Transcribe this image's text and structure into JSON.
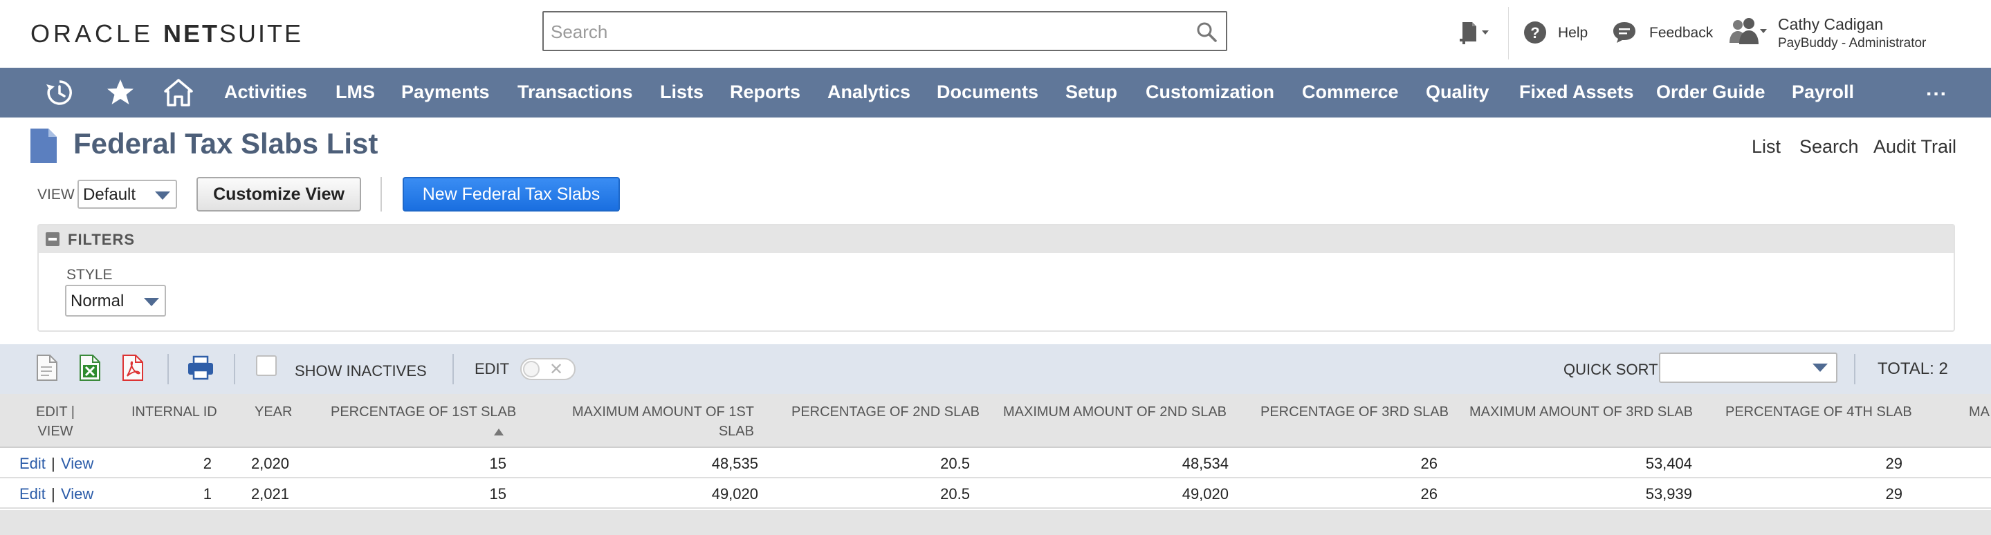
{
  "header": {
    "logo_oracle": "ORACLE",
    "logo_net": "NET",
    "logo_suite": "SUITE",
    "search_placeholder": "Search",
    "help": "Help",
    "feedback": "Feedback",
    "user_name": "Cathy Cadigan",
    "user_role": "PayBuddy - Administrator"
  },
  "nav": {
    "items": [
      "Activities",
      "LMS",
      "Payments",
      "Transactions",
      "Lists",
      "Reports",
      "Analytics",
      "Documents",
      "Setup",
      "Customization",
      "Commerce",
      "Quality",
      "Fixed Assets",
      "Order Guide",
      "Payroll"
    ],
    "more": "..."
  },
  "page": {
    "title": "Federal Tax Slabs List",
    "links": [
      "List",
      "Search",
      "Audit Trail"
    ],
    "view_label": "VIEW",
    "view_value": "Default",
    "customize_button": "Customize View",
    "new_button": "New Federal Tax Slabs"
  },
  "filters": {
    "title": "FILTERS",
    "style_label": "STYLE",
    "style_value": "Normal"
  },
  "toolbar": {
    "show_inactives": "SHOW INACTIVES",
    "edit_label": "EDIT",
    "quick_sort_label": "QUICK SORT",
    "quick_sort_value": "",
    "total": "TOTAL: 2"
  },
  "table": {
    "headers": {
      "edit_view_1": "EDIT |",
      "edit_view_2": "VIEW",
      "internal_id": "INTERNAL ID",
      "year": "YEAR",
      "pct1": "PERCENTAGE OF 1ST SLAB",
      "max1_1": "MAXIMUM AMOUNT OF 1ST",
      "max1_2": "SLAB",
      "pct2": "PERCENTAGE OF 2ND SLAB",
      "max2": "MAXIMUM AMOUNT OF 2ND SLAB",
      "pct3": "PERCENTAGE OF 3RD SLAB",
      "max3": "MAXIMUM AMOUNT OF 3RD SLAB",
      "pct4": "PERCENTAGE OF 4TH SLAB",
      "cut": "MA"
    },
    "rows": [
      {
        "edit": "Edit",
        "sep": "|",
        "view": "View",
        "internal_id": "2",
        "year": "2,020",
        "pct1": "15",
        "max1": "48,535",
        "pct2": "20.5",
        "max2": "48,534",
        "pct3": "26",
        "max3": "53,404",
        "pct4": "29"
      },
      {
        "edit": "Edit",
        "sep": "|",
        "view": "View",
        "internal_id": "1",
        "year": "2,021",
        "pct1": "15",
        "max1": "49,020",
        "pct2": "20.5",
        "max2": "49,020",
        "pct3": "26",
        "max3": "53,939",
        "pct4": "29"
      }
    ]
  },
  "colors": {
    "navbar": "#607799",
    "title": "#4d5f79",
    "primary_button": "#1a6fe0",
    "link": "#2a5ba8"
  }
}
